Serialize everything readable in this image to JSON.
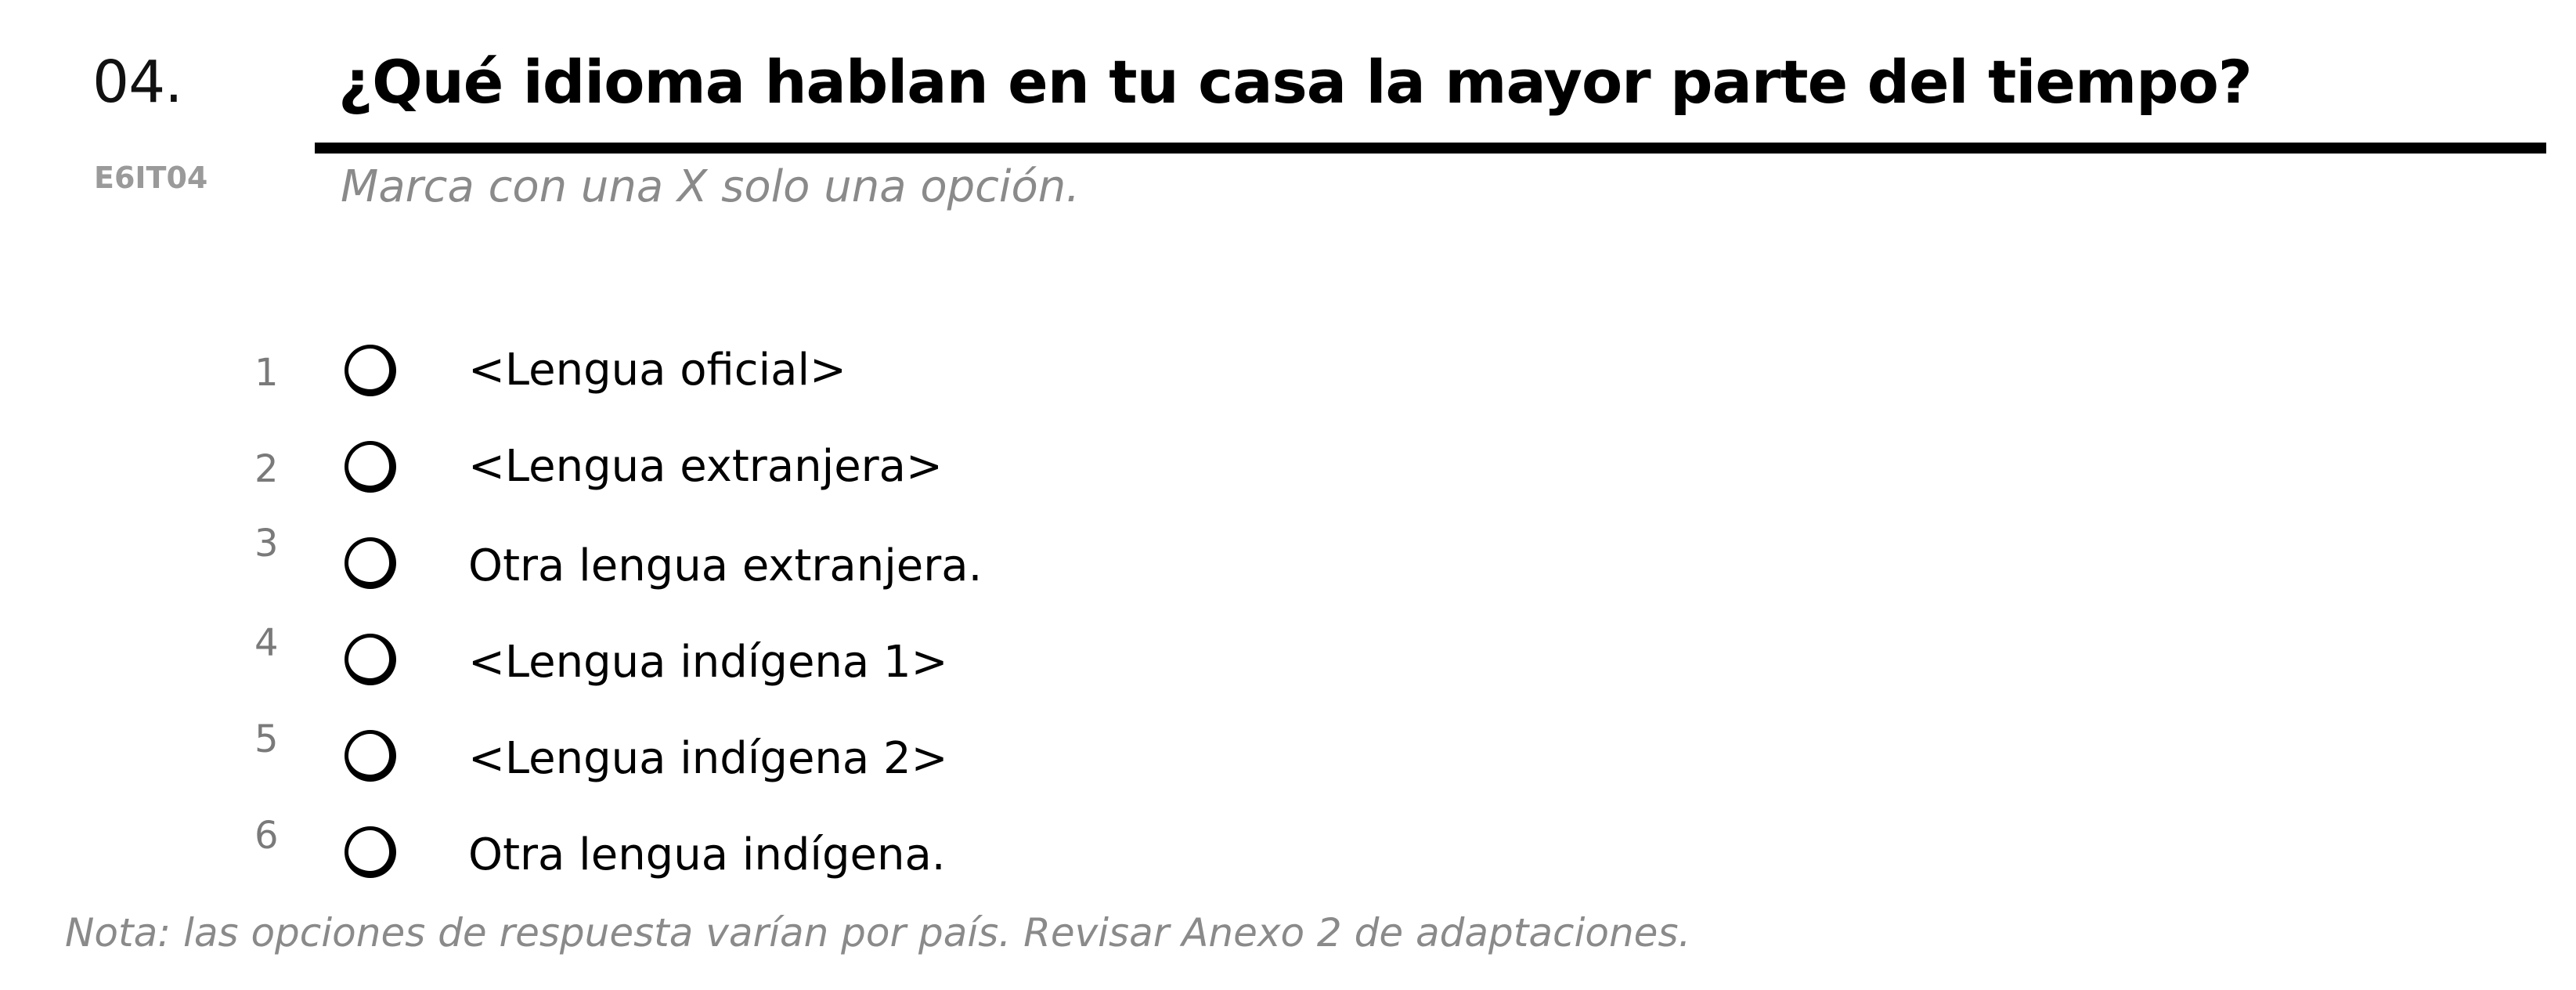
{
  "question": {
    "number": "04.",
    "code": "E6IT04",
    "title": "¿Qué idioma hablan en tu casa la mayor parte del tiempo?",
    "instruction": "Marca con una X solo una opción."
  },
  "options": [
    {
      "num": "1",
      "label": "<Lengua oficial>"
    },
    {
      "num": "2",
      "label": "<Lengua extranjera>"
    },
    {
      "num": "3",
      "label": "Otra lengua extranjera."
    },
    {
      "num": "4",
      "label": "<Lengua indígena 1>"
    },
    {
      "num": "5",
      "label": "<Lengua indígena 2>"
    },
    {
      "num": "6",
      "label": "Otra lengua indígena."
    }
  ],
  "note": "Nota: las opciones de respuesta varían por país. Revisar Anexo 2 de adaptaciones."
}
